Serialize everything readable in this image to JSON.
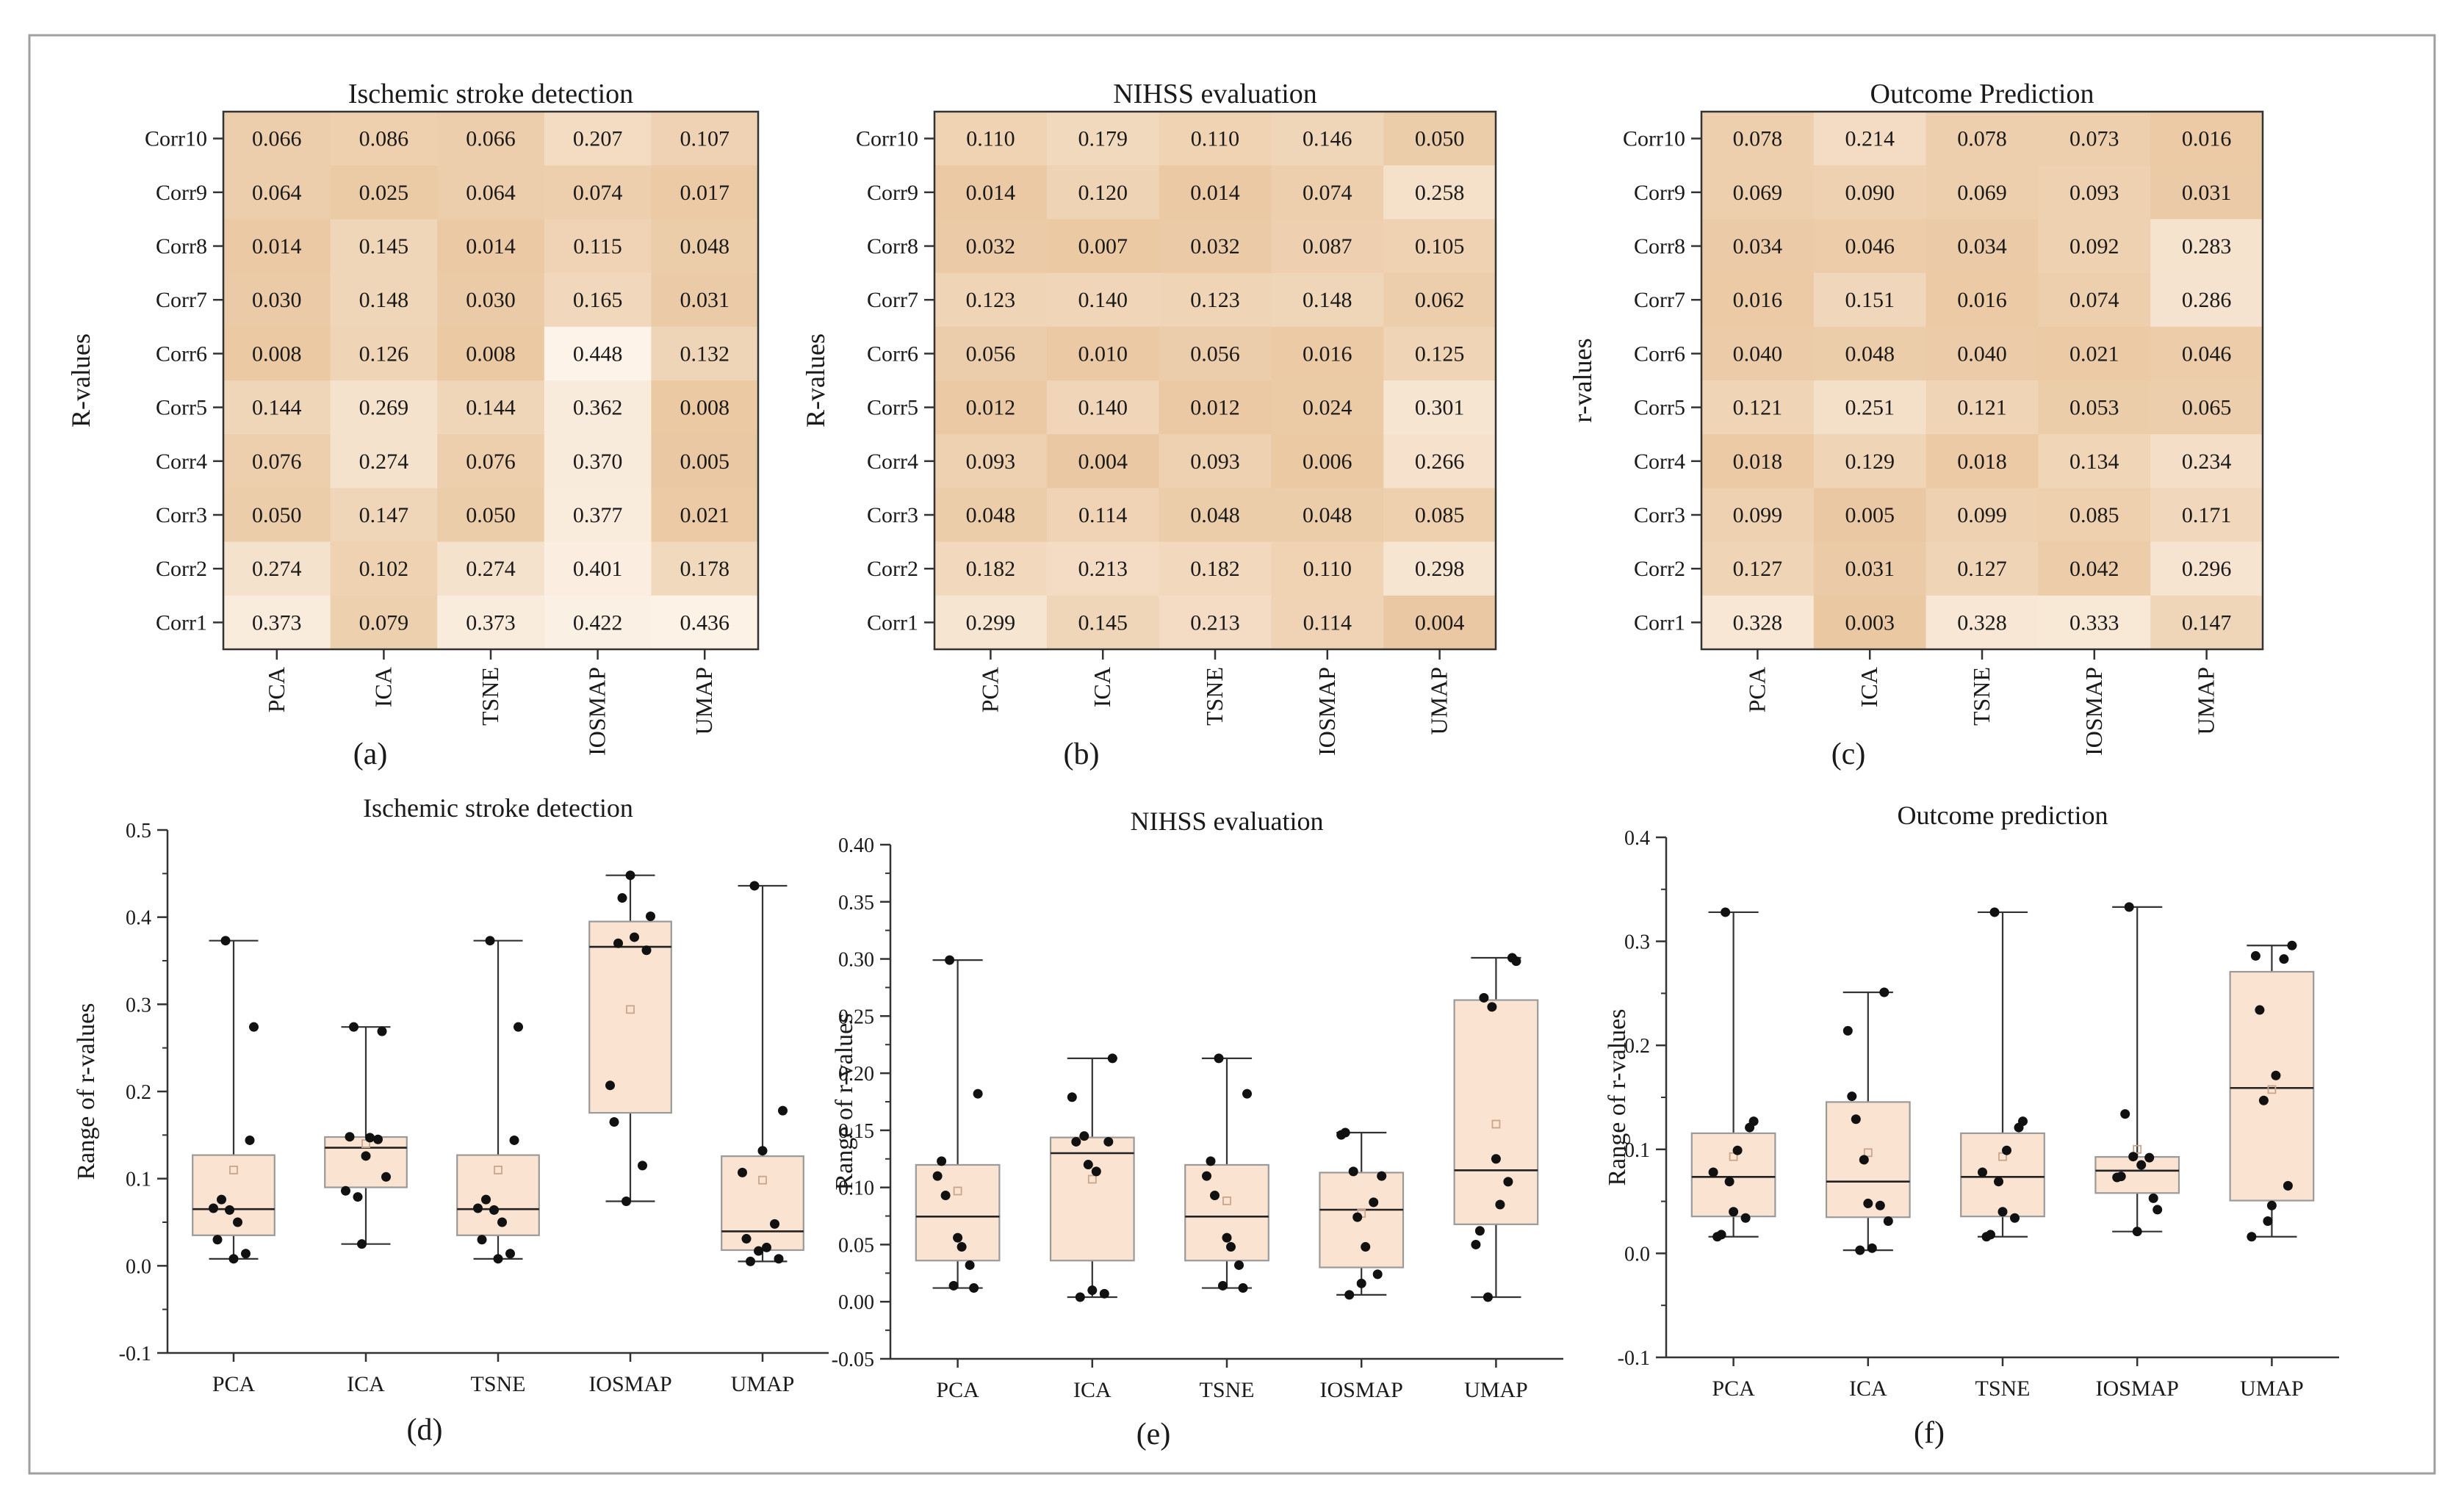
{
  "chart_data": [
    {
      "panel": "(a)",
      "type": "heatmap",
      "title": "Ischemic stroke detection",
      "ylabel": "R-values",
      "x_categories": [
        "PCA",
        "ICA",
        "TSNE",
        "IOSMAP",
        "UMAP"
      ],
      "y_categories": [
        "Corr10",
        "Corr9",
        "Corr8",
        "Corr7",
        "Corr6",
        "Corr5",
        "Corr4",
        "Corr3",
        "Corr2",
        "Corr1"
      ],
      "values": [
        [
          "0.066",
          "0.086",
          "0.066",
          "0.207",
          "0.107"
        ],
        [
          "0.064",
          "0.025",
          "0.064",
          "0.074",
          "0.017"
        ],
        [
          "0.014",
          "0.145",
          "0.014",
          "0.115",
          "0.048"
        ],
        [
          "0.030",
          "0.148",
          "0.030",
          "0.165",
          "0.031"
        ],
        [
          "0.008",
          "0.126",
          "0.008",
          "0.448",
          "0.132"
        ],
        [
          "0.144",
          "0.269",
          "0.144",
          "0.362",
          "0.008"
        ],
        [
          "0.076",
          "0.274",
          "0.076",
          "0.370",
          "0.005"
        ],
        [
          "0.050",
          "0.147",
          "0.050",
          "0.377",
          "0.021"
        ],
        [
          "0.274",
          "0.102",
          "0.274",
          "0.401",
          "0.178"
        ],
        [
          "0.373",
          "0.079",
          "0.373",
          "0.422",
          "0.436"
        ]
      ]
    },
    {
      "panel": "(b)",
      "type": "heatmap",
      "title": "NIHSS evaluation",
      "ylabel": "R-values",
      "x_categories": [
        "PCA",
        "ICA",
        "TSNE",
        "IOSMAP",
        "UMAP"
      ],
      "y_categories": [
        "Corr10",
        "Corr9",
        "Corr8",
        "Corr7",
        "Corr6",
        "Corr5",
        "Corr4",
        "Corr3",
        "Corr2",
        "Corr1"
      ],
      "values": [
        [
          "0.110",
          "0.179",
          "0.110",
          "0.146",
          "0.050"
        ],
        [
          "0.014",
          "0.120",
          "0.014",
          "0.074",
          "0.258"
        ],
        [
          "0.032",
          "0.007",
          "0.032",
          "0.087",
          "0.105"
        ],
        [
          "0.123",
          "0.140",
          "0.123",
          "0.148",
          "0.062"
        ],
        [
          "0.056",
          "0.010",
          "0.056",
          "0.016",
          "0.125"
        ],
        [
          "0.012",
          "0.140",
          "0.012",
          "0.024",
          "0.301"
        ],
        [
          "0.093",
          "0.004",
          "0.093",
          "0.006",
          "0.266"
        ],
        [
          "0.048",
          "0.114",
          "0.048",
          "0.048",
          "0.085"
        ],
        [
          "0.182",
          "0.213",
          "0.182",
          "0.110",
          "0.298"
        ],
        [
          "0.299",
          "0.145",
          "0.213",
          "0.114",
          "0.004"
        ]
      ]
    },
    {
      "panel": "(c)",
      "type": "heatmap",
      "title": "Outcome Prediction",
      "ylabel": "r-values",
      "x_categories": [
        "PCA",
        "ICA",
        "TSNE",
        "IOSMAP",
        "UMAP"
      ],
      "y_categories": [
        "Corr10",
        "Corr9",
        "Corr8",
        "Corr7",
        "Corr6",
        "Corr5",
        "Corr4",
        "Corr3",
        "Corr2",
        "Corr1"
      ],
      "values": [
        [
          "0.078",
          "0.214",
          "0.078",
          "0.073",
          "0.016"
        ],
        [
          "0.069",
          "0.090",
          "0.069",
          "0.093",
          "0.031"
        ],
        [
          "0.034",
          "0.046",
          "0.034",
          "0.092",
          "0.283"
        ],
        [
          "0.016",
          "0.151",
          "0.016",
          "0.074",
          "0.286"
        ],
        [
          "0.040",
          "0.048",
          "0.040",
          "0.021",
          "0.046"
        ],
        [
          "0.121",
          "0.251",
          "0.121",
          "0.053",
          "0.065"
        ],
        [
          "0.018",
          "0.129",
          "0.018",
          "0.134",
          "0.234"
        ],
        [
          "0.099",
          "0.005",
          "0.099",
          "0.085",
          "0.171"
        ],
        [
          "0.127",
          "0.031",
          "0.127",
          "0.042",
          "0.296"
        ],
        [
          "0.328",
          "0.003",
          "0.328",
          "0.333",
          "0.147"
        ]
      ]
    },
    {
      "panel": "(d)",
      "type": "box",
      "title": "Ischemic stroke detection",
      "ylabel": "Range of r-values",
      "categories": [
        "PCA",
        "ICA",
        "TSNE",
        "IOSMAP",
        "UMAP"
      ],
      "ylim": [
        -0.1,
        0.5
      ],
      "yticks": [
        "-0.1",
        "0.0",
        "0.1",
        "0.2",
        "0.3",
        "0.4",
        "0.5"
      ],
      "points_from_panel": 0
    },
    {
      "panel": "(e)",
      "type": "box",
      "title": "NIHSS evaluation",
      "ylabel": "Range of r-values",
      "categories": [
        "PCA",
        "ICA",
        "TSNE",
        "IOSMAP",
        "UMAP"
      ],
      "ylim": [
        -0.05,
        0.4
      ],
      "yticks": [
        "-0.05",
        "0.00",
        "0.05",
        "0.10",
        "0.15",
        "0.20",
        "0.25",
        "0.30",
        "0.35",
        "0.40"
      ],
      "points_from_panel": 1
    },
    {
      "panel": "(f)",
      "type": "box",
      "title": "Outcome prediction",
      "ylabel": "Range of r-values",
      "categories": [
        "PCA",
        "ICA",
        "TSNE",
        "IOSMAP",
        "UMAP"
      ],
      "ylim": [
        -0.1,
        0.4
      ],
      "yticks": [
        "-0.1",
        "0.0",
        "0.1",
        "0.2",
        "0.3",
        "0.4"
      ],
      "points_from_panel": 2
    }
  ],
  "colors": {
    "heat_low": "#fdf4ea",
    "heat_high": "#eac8a2",
    "box_fill": "#fbe3d2",
    "box_stroke": "#9a9a9a",
    "point": "#111111",
    "mean_marker": "#c9a58a",
    "frame": "#9f9f9f"
  }
}
